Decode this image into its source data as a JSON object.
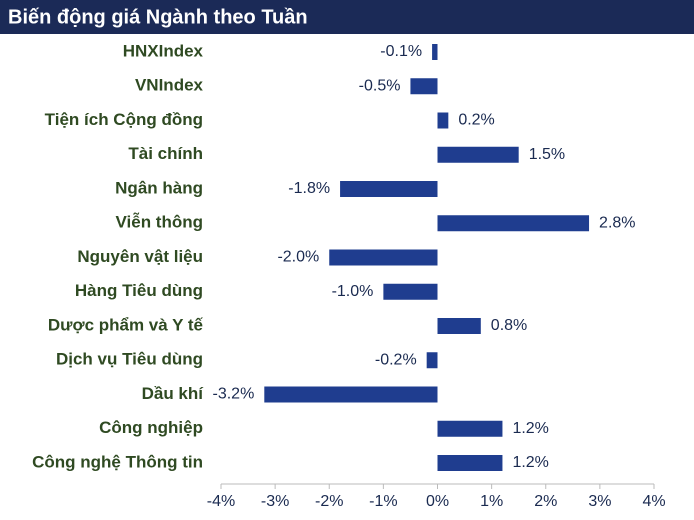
{
  "chart_data": {
    "type": "bar",
    "orientation": "horizontal",
    "title": "Biến động giá Ngành theo Tuần",
    "categories": [
      "HNXIndex",
      "VNIndex",
      "Tiện ích Cộng đồng",
      "Tài chính",
      "Ngân hàng",
      "Viễn thông",
      "Nguyên vật liệu",
      "Hàng Tiêu dùng",
      "Dược phẩm và Y tế",
      "Dịch vụ Tiêu dùng",
      "Dầu khí",
      "Công nghiệp",
      "Công nghệ Thông tin"
    ],
    "values": [
      -0.1,
      -0.5,
      0.2,
      1.5,
      -1.8,
      2.8,
      -2.0,
      -1.0,
      0.8,
      -0.2,
      -3.2,
      1.2,
      1.2
    ],
    "value_labels": [
      "-0.1%",
      "-0.5%",
      "0.2%",
      "1.5%",
      "-1.8%",
      "2.8%",
      "-2.0%",
      "-1.0%",
      "0.8%",
      "-0.2%",
      "-3.2%",
      "1.2%",
      "1.2%"
    ],
    "color": "#1f3d8f",
    "xlim": [
      -4,
      4
    ],
    "xticks": [
      {
        "value": -4,
        "label": "-4%"
      },
      {
        "value": -3,
        "label": "-3%"
      },
      {
        "value": -2,
        "label": "-2%"
      },
      {
        "value": -1,
        "label": "-1%"
      },
      {
        "value": 0,
        "label": "0%"
      },
      {
        "value": 1,
        "label": "1%"
      },
      {
        "value": 2,
        "label": "2%"
      },
      {
        "value": 3,
        "label": "3%"
      },
      {
        "value": 4,
        "label": "4%"
      }
    ],
    "grid": false
  }
}
